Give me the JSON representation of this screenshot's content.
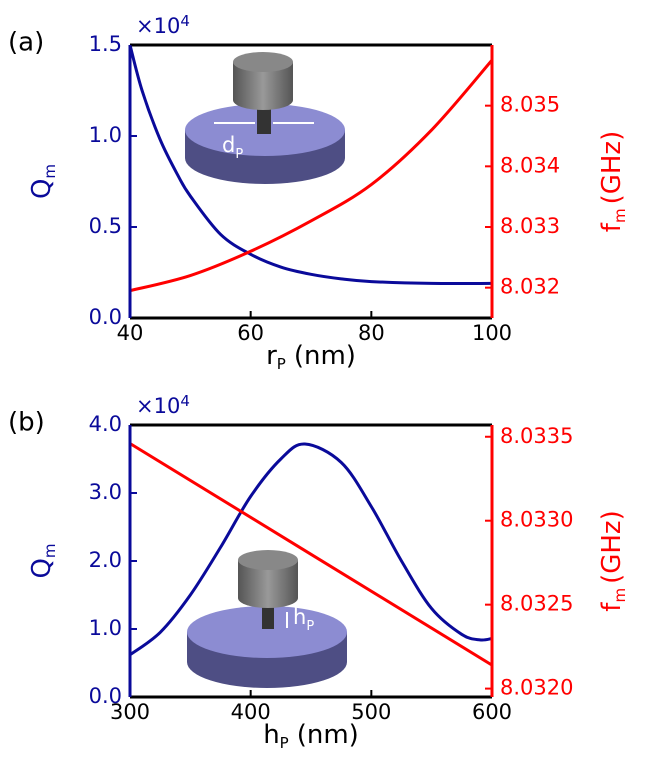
{
  "chart_data": [
    {
      "type": "line",
      "panel_label": "(a)",
      "multiplier": "×10",
      "multiplier_exp": "4",
      "xlabel": "r",
      "xlabel_sub": "P",
      "xlabel_unit": "(nm)",
      "ylabel": "Q",
      "ylabel_sub": "m",
      "y2label": "f",
      "y2label_sub": "m",
      "y2label_unit": "(GHz)",
      "inset_label": "d",
      "inset_label_sub": "P",
      "xlim": [
        40,
        100
      ],
      "xticks": [
        40,
        60,
        80,
        100
      ],
      "ylim": [
        0,
        1.5
      ],
      "yticks": [
        {
          "value": 0,
          "label": "0.0"
        },
        {
          "value": 0.5,
          "label": "0.5"
        },
        {
          "value": 1.0,
          "label": "1.0"
        },
        {
          "value": 1.5,
          "label": "1.5"
        }
      ],
      "y2lim": [
        8.0315,
        8.036
      ],
      "y2ticks": [
        8.032,
        8.033,
        8.034,
        8.035
      ],
      "series": [
        {
          "color": "#0a0a9a",
          "x": [
            40,
            42,
            45,
            48,
            50,
            55,
            60,
            65,
            70,
            75,
            80,
            90,
            100
          ],
          "values": [
            1.5,
            1.25,
            0.98,
            0.78,
            0.67,
            0.46,
            0.35,
            0.28,
            0.24,
            0.215,
            0.2,
            0.19,
            0.19
          ]
        },
        {
          "color": "#ff0000",
          "axis": "y2",
          "x": [
            40,
            50,
            60,
            70,
            80,
            90,
            100
          ],
          "values": [
            8.03195,
            8.0322,
            8.0326,
            8.0331,
            8.0337,
            8.0346,
            8.03575
          ]
        }
      ]
    },
    {
      "type": "line",
      "panel_label": "(b)",
      "multiplier": "×10",
      "multiplier_exp": "4",
      "xlabel": "h",
      "xlabel_sub": "P",
      "xlabel_unit": "(nm)",
      "ylabel": "Q",
      "ylabel_sub": "m",
      "y2label": "f",
      "y2label_sub": "m",
      "y2label_unit": "(GHz)",
      "inset_label": "h",
      "inset_label_sub": "P",
      "xlim": [
        300,
        600
      ],
      "xticks": [
        300,
        400,
        500,
        600
      ],
      "ylim": [
        0,
        4.0
      ],
      "yticks": [
        {
          "value": 0,
          "label": "0.0"
        },
        {
          "value": 1.0,
          "label": "1.0"
        },
        {
          "value": 2.0,
          "label": "2.0"
        },
        {
          "value": 3.0,
          "label": "3.0"
        },
        {
          "value": 4.0,
          "label": "4.0"
        }
      ],
      "y2lim": [
        8.03195,
        8.03357
      ],
      "y2ticks": [
        {
          "value": 8.032,
          "label": "8.0320"
        },
        8.0325,
        {
          "value": 8.033,
          "label": "8.0330"
        },
        8.0335
      ],
      "series": [
        {
          "color": "#0a0a9a",
          "x": [
            300,
            325,
            350,
            375,
            400,
            425,
            445,
            475,
            500,
            525,
            550,
            575,
            590,
            600
          ],
          "values": [
            0.62,
            0.95,
            1.5,
            2.2,
            2.95,
            3.5,
            3.72,
            3.45,
            2.8,
            2.0,
            1.3,
            0.92,
            0.84,
            0.86
          ]
        },
        {
          "color": "#ff0000",
          "axis": "y2",
          "x": [
            300,
            600
          ],
          "values": [
            8.03346,
            8.03214
          ]
        }
      ]
    }
  ]
}
